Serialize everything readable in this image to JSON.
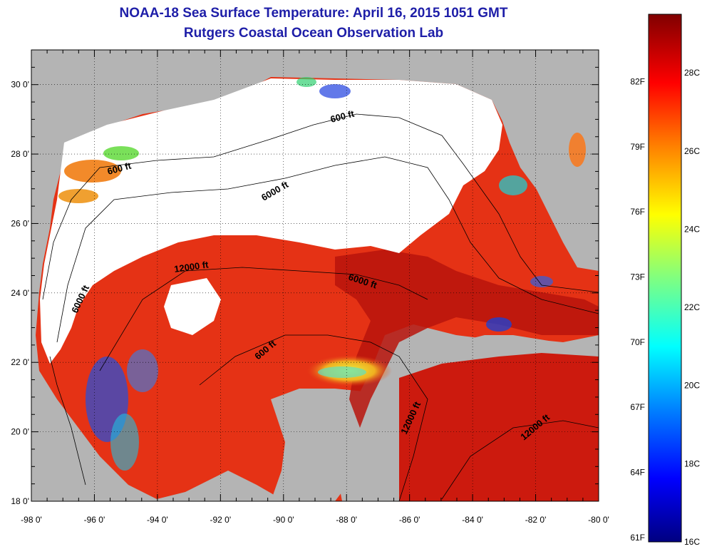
{
  "title": "NOAA-18 Sea Surface Temperature:  April 16, 2015 1051 GMT",
  "subtitle": "Rutgers Coastal Ocean Observation Lab",
  "map": {
    "lon_range": [
      -98,
      -80
    ],
    "lat_range": [
      18,
      31
    ],
    "lon_ticks": [
      "-98 0'",
      "-96 0'",
      "-94 0'",
      "-92 0'",
      "-90 0'",
      "-88 0'",
      "-86 0'",
      "-84 0'",
      "-82 0'",
      "-80 0'"
    ],
    "lat_ticks": [
      "18 0'",
      "20 0'",
      "22 0'",
      "24 0'",
      "26 0'",
      "28 0'",
      "30 0'"
    ],
    "contour_labels": [
      "600 ft",
      "600 ft",
      "6000 ft",
      "12000 ft",
      "6000 ft",
      "6000 ft",
      "600 ft",
      "12000 ft",
      "12000 ft"
    ],
    "colors": {
      "land": "#b4b4b4",
      "cloud": "#ffffff",
      "warm": "#e82a12",
      "hot": "#b0100c"
    }
  },
  "colorbar": {
    "fahrenheit": [
      "82F",
      "79F",
      "76F",
      "73F",
      "70F",
      "67F",
      "64F",
      "61F"
    ],
    "celsius": [
      "28C",
      "26C",
      "24C",
      "22C",
      "20C",
      "18C",
      "16C"
    ],
    "range_c": [
      16,
      29.5
    ],
    "stops": [
      "#000080",
      "#0000ff",
      "#0080ff",
      "#00ffff",
      "#80ff80",
      "#ffff00",
      "#ff8000",
      "#ff0000",
      "#800000"
    ]
  }
}
